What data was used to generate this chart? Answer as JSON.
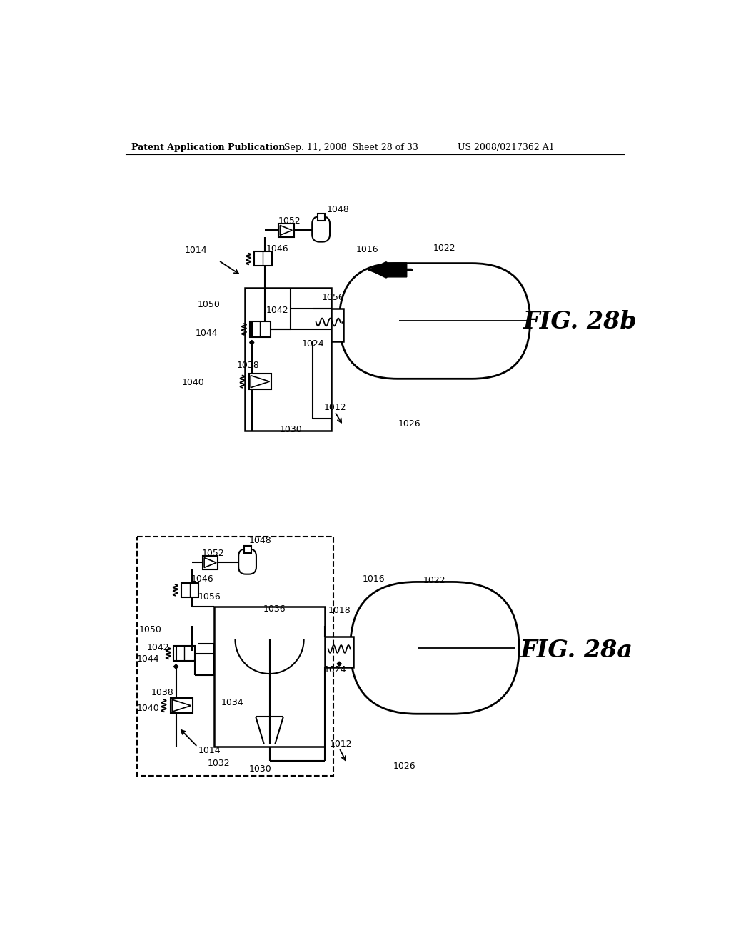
{
  "bg_color": "#ffffff",
  "header_left": "Patent Application Publication",
  "header_mid": "Sep. 11, 2008  Sheet 28 of 33",
  "header_right": "US 2008/0217362 A1",
  "fig_b_label": "FIG. 28b",
  "fig_a_label": "FIG. 28a"
}
